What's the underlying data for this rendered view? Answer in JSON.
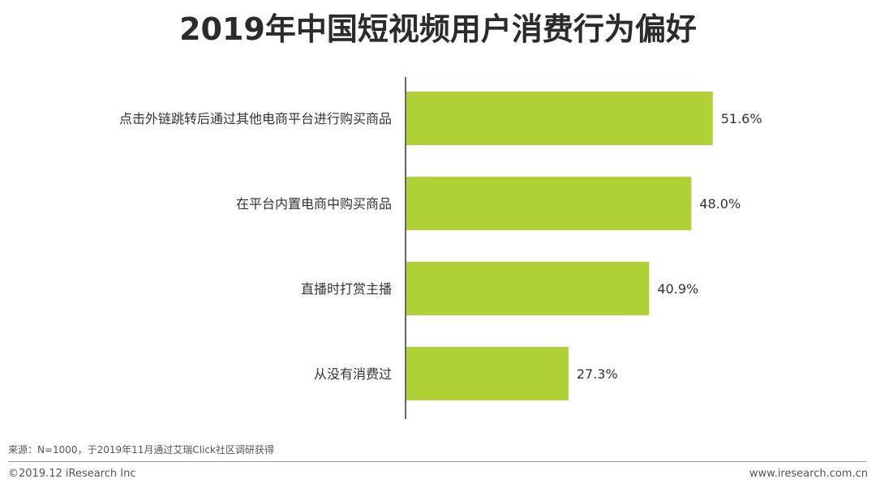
{
  "chart_data": {
    "type": "bar",
    "orientation": "horizontal",
    "title": "2019年中国短视频用户消费行为偏好",
    "categories": [
      "点击外链跳转后通过其他电商平台进行购买商品",
      "在平台内置电商中购买商品",
      "直播时打赏主播",
      "从没有消费过"
    ],
    "values": [
      51.6,
      48.0,
      40.9,
      27.3
    ],
    "value_labels": [
      "51.6%",
      "48.0%",
      "40.9%",
      "27.3%"
    ],
    "unit": "%",
    "xlim": [
      0,
      60
    ],
    "bar_color": "#afd136",
    "grid": false,
    "legend": "none"
  },
  "footer": {
    "source": "来源：N=1000，于2019年11月通过艾瑞Click社区调研获得",
    "copyright": "©2019.12 iResearch Inc",
    "website": "www.iresearch.com.cn"
  }
}
